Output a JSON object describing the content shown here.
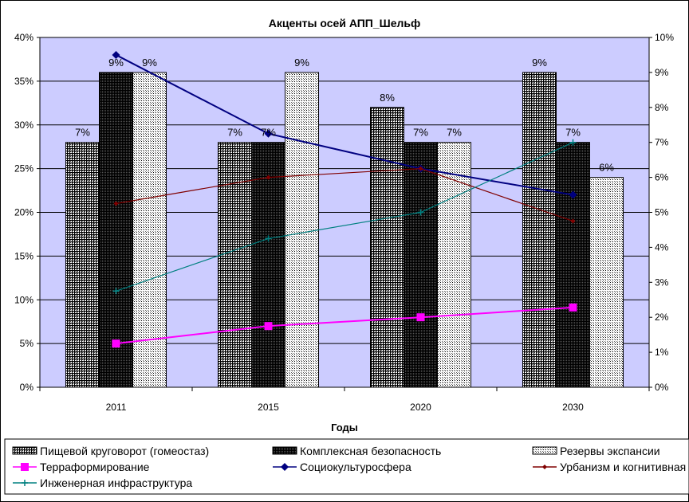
{
  "chart_data": {
    "type": "bar",
    "title": "Акценты осей АПП_Шельф",
    "xlabel": "Годы",
    "ylabel": "",
    "y2label": "",
    "categories": [
      "2011",
      "2015",
      "2020",
      "2030"
    ],
    "ylim": [
      0,
      0.4
    ],
    "y2lim": [
      0,
      0.1
    ],
    "yticks": [
      "0%",
      "5%",
      "10%",
      "15%",
      "20%",
      "25%",
      "30%",
      "35%",
      "40%"
    ],
    "y2ticks": [
      "0%",
      "1%",
      "2%",
      "3%",
      "4%",
      "5%",
      "6%",
      "7%",
      "8%",
      "9%",
      "10%"
    ],
    "grid": true,
    "legend_position": "bottom",
    "bar_series": [
      {
        "name": "Пищевой круговорот (гомеостаз)",
        "values": [
          0.28,
          0.28,
          0.32,
          0.36
        ],
        "labels": [
          "7%",
          "7%",
          "8%",
          "9%"
        ],
        "pattern": "grid"
      },
      {
        "name": "Комплексная безопасность",
        "values": [
          0.36,
          0.28,
          0.28,
          0.28
        ],
        "labels": [
          "9%",
          "7%",
          "7%",
          "7%"
        ],
        "pattern": "dense"
      },
      {
        "name": "Резервы экспансии",
        "values": [
          0.36,
          0.36,
          0.28,
          0.24
        ],
        "labels": [
          "9%",
          "9%",
          "7%",
          "6%"
        ],
        "pattern": "dots"
      }
    ],
    "line_series": [
      {
        "name": "Терраформирование",
        "axis": "secondary",
        "values": [
          0.0125,
          0.0175,
          0.02,
          0.0228
        ],
        "color": "#ff00ff",
        "marker": "square"
      },
      {
        "name": "Социокультуросфера",
        "axis": "secondary",
        "values": [
          0.095,
          0.0725,
          0.0625,
          0.055
        ],
        "color": "#000080",
        "marker": "diamond"
      },
      {
        "name": "Урбанизм и когнитивная",
        "axis": "secondary",
        "values": [
          0.0525,
          0.06,
          0.0625,
          0.0475
        ],
        "color": "#800000",
        "marker": "small-diamond"
      },
      {
        "name": "Инженерная инфраструктура",
        "axis": "secondary",
        "values": [
          0.0275,
          0.0425,
          0.05,
          0.07
        ],
        "color": "#008080",
        "marker": "plus"
      }
    ],
    "colors": {
      "plot_background": "#ccccff",
      "grid": "#000000",
      "bar_border": "#000000"
    }
  }
}
